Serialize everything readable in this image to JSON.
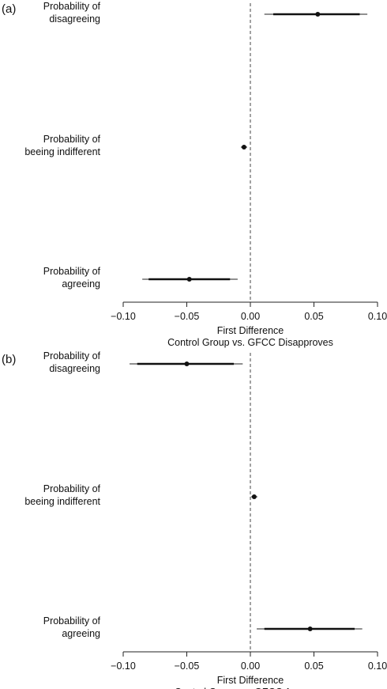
{
  "chart_data": [
    {
      "type": "coefficient-plot",
      "panel_label": "(a)",
      "xlabel": "First Difference",
      "subtitle": "Control Group vs. GFCC Disapproves",
      "xlim": [
        -0.1,
        0.1
      ],
      "x_ticks": [
        "-0.10",
        "-0.05",
        "0.00",
        "0.05",
        "0.10"
      ],
      "x_tick_values": [
        -0.1,
        -0.05,
        0.0,
        0.05,
        0.1
      ],
      "reference_line": 0,
      "categories": [
        {
          "line1": "Probability of",
          "line2": "disagreeing",
          "estimate": 0.053,
          "ci90": [
            0.018,
            0.086
          ],
          "ci95": [
            0.011,
            0.092
          ]
        },
        {
          "line1": "Probability of",
          "line2": "beeing indifferent",
          "estimate": -0.005,
          "ci90": [
            -0.0065,
            -0.0035
          ],
          "ci95": [
            -0.0075,
            -0.0025
          ]
        },
        {
          "line1": "Probability of",
          "line2": "agreeing",
          "estimate": -0.048,
          "ci90": [
            -0.08,
            -0.016
          ],
          "ci95": [
            -0.085,
            -0.01
          ]
        }
      ]
    },
    {
      "type": "coefficient-plot",
      "panel_label": "(b)",
      "xlabel": "First Difference",
      "subtitle": "Control Group vs. GFCC Approves",
      "xlim": [
        -0.1,
        0.1
      ],
      "x_ticks": [
        "-0.10",
        "-0.05",
        "0.00",
        "0.05",
        "0.10"
      ],
      "x_tick_values": [
        -0.1,
        -0.05,
        0.0,
        0.05,
        0.1
      ],
      "reference_line": 0,
      "categories": [
        {
          "line1": "Probability of",
          "line2": "disagreeing",
          "estimate": -0.05,
          "ci90": [
            -0.089,
            -0.013
          ],
          "ci95": [
            -0.095,
            -0.006
          ]
        },
        {
          "line1": "Probability of",
          "line2": "beeing indifferent",
          "estimate": 0.003,
          "ci90": [
            0.0015,
            0.0045
          ],
          "ci95": [
            0.0005,
            0.0055
          ]
        },
        {
          "line1": "Probability of",
          "line2": "agreeing",
          "estimate": 0.047,
          "ci90": [
            0.011,
            0.082
          ],
          "ci95": [
            0.005,
            0.088
          ]
        }
      ]
    }
  ]
}
